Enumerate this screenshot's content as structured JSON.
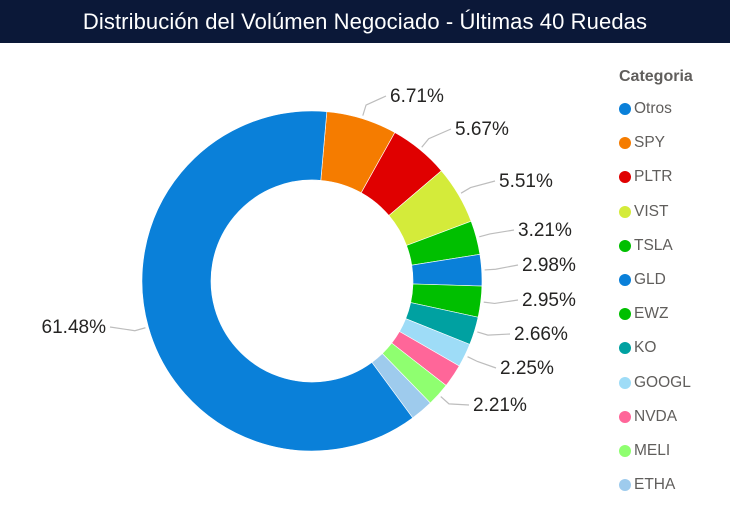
{
  "header": {
    "title": "Distribución del Volúmen Negociado - Últimas 40 Ruedas"
  },
  "legend": {
    "title": "Categoria"
  },
  "chart_data": {
    "type": "pie",
    "subtype": "donut",
    "title": "Distribución del Volúmen Negociado - Últimas 40 Ruedas",
    "legend_title": "Categoria",
    "legend_position": "right",
    "categories": [
      "Otros",
      "SPY",
      "PLTR",
      "VIST",
      "TSLA",
      "GLD",
      "EWZ",
      "KO",
      "GOOGL",
      "NVDA",
      "MELI",
      "ETHA"
    ],
    "values": [
      61.48,
      6.71,
      5.67,
      5.51,
      3.21,
      2.98,
      2.95,
      2.66,
      2.25,
      2.2,
      2.21,
      2.16
    ],
    "labels": [
      "61.48%",
      "6.71%",
      "5.67%",
      "5.51%",
      "3.21%",
      "2.98%",
      "2.95%",
      "2.66%",
      "2.25%",
      "",
      "2.21%",
      ""
    ],
    "colors": [
      "#0a80d9",
      "#f57c00",
      "#e00000",
      "#d4eb3a",
      "#00bf00",
      "#0a80d9",
      "#00bf00",
      "#00a1a1",
      "#9edcf7",
      "#ff6699",
      "#8fff70",
      "#9ecbed"
    ],
    "unit": "%"
  }
}
